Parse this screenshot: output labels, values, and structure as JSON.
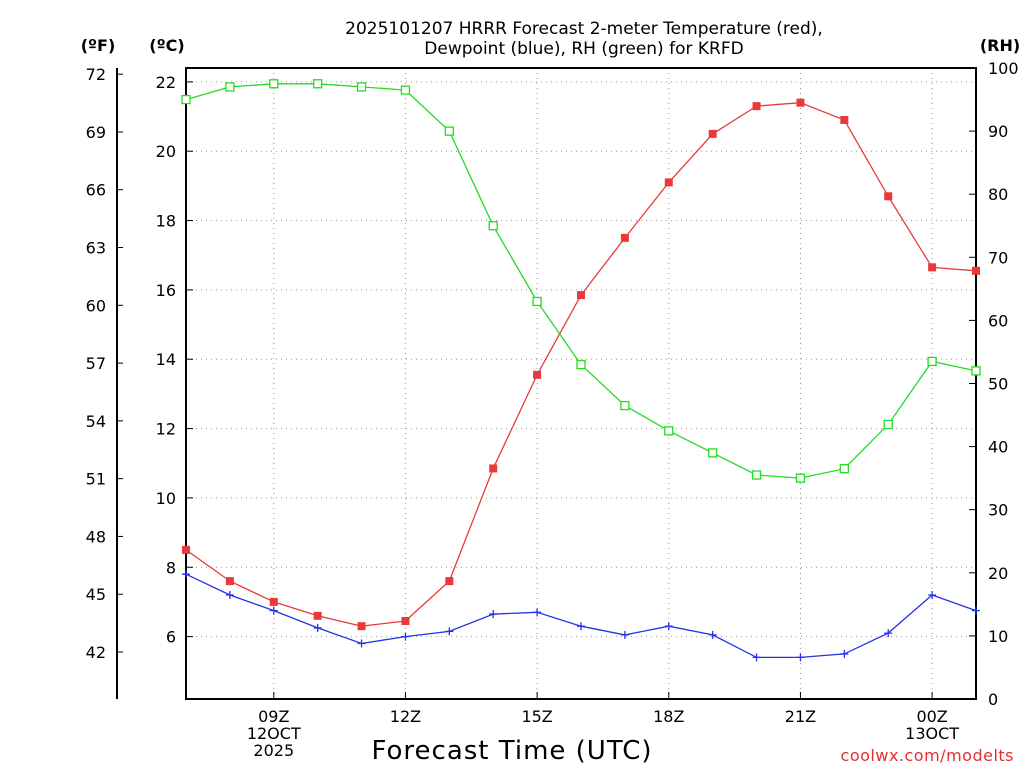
{
  "chart_data": {
    "type": "line",
    "title_line1": "2025101207 HRRR Forecast 2-meter Temperature (red),",
    "title_line2": "Dewpoint (blue), RH (green) for KRFD",
    "xlabel": "Forecast Time (UTC)",
    "credit": "coolwx.com/modelts",
    "units": {
      "f": "(ºF)",
      "c": "(ºC)",
      "rh": "(RH)"
    },
    "x": [
      7,
      8,
      9,
      10,
      11,
      12,
      13,
      14,
      15,
      16,
      17,
      18,
      19,
      20,
      21,
      22,
      23,
      24,
      25
    ],
    "x_tick_labels": [
      {
        "x": 9,
        "lines": [
          "09Z",
          "12OCT",
          "2025"
        ]
      },
      {
        "x": 12,
        "lines": [
          "12Z"
        ]
      },
      {
        "x": 15,
        "lines": [
          "15Z"
        ]
      },
      {
        "x": 18,
        "lines": [
          "18Z"
        ]
      },
      {
        "x": 21,
        "lines": [
          "21Z"
        ]
      },
      {
        "x": 24,
        "lines": [
          "00Z",
          "13OCT"
        ]
      }
    ],
    "xlim": [
      7,
      25
    ],
    "ylim_c": [
      4.2,
      22.4
    ],
    "ylim_rh": [
      0,
      100
    ],
    "c_ticks": [
      "6",
      "8",
      "10",
      "12",
      "14",
      "16",
      "18",
      "20",
      "22"
    ],
    "f_ticks": [
      "42",
      "45",
      "48",
      "51",
      "54",
      "57",
      "60",
      "63",
      "66",
      "69",
      "72"
    ],
    "rh_ticks": [
      "0",
      "10",
      "20",
      "30",
      "40",
      "50",
      "60",
      "70",
      "80",
      "90",
      "100"
    ],
    "series": [
      {
        "name": "Temperature",
        "color": "#e83a3a",
        "marker": "filled-square",
        "values": [
          8.5,
          7.6,
          7.0,
          6.6,
          6.3,
          6.45,
          7.6,
          10.85,
          13.55,
          15.85,
          17.5,
          19.1,
          20.5,
          21.3,
          21.4,
          20.9,
          18.7,
          16.65,
          16.55
        ]
      },
      {
        "name": "Dewpoint",
        "color": "#2233e8",
        "marker": "plus",
        "values": [
          7.8,
          7.2,
          6.75,
          6.25,
          5.8,
          6.0,
          6.15,
          6.65,
          6.7,
          6.3,
          6.05,
          6.3,
          6.05,
          5.4,
          5.4,
          5.5,
          6.1,
          7.2,
          6.75
        ]
      },
      {
        "name": "RH",
        "color": "#22dd22",
        "marker": "open-square",
        "values": [
          95,
          97,
          97.5,
          97.5,
          97,
          96.5,
          90,
          75,
          63,
          53,
          46.5,
          42.5,
          39,
          35.5,
          35,
          36.5,
          43.5,
          53.5,
          52
        ]
      }
    ]
  }
}
